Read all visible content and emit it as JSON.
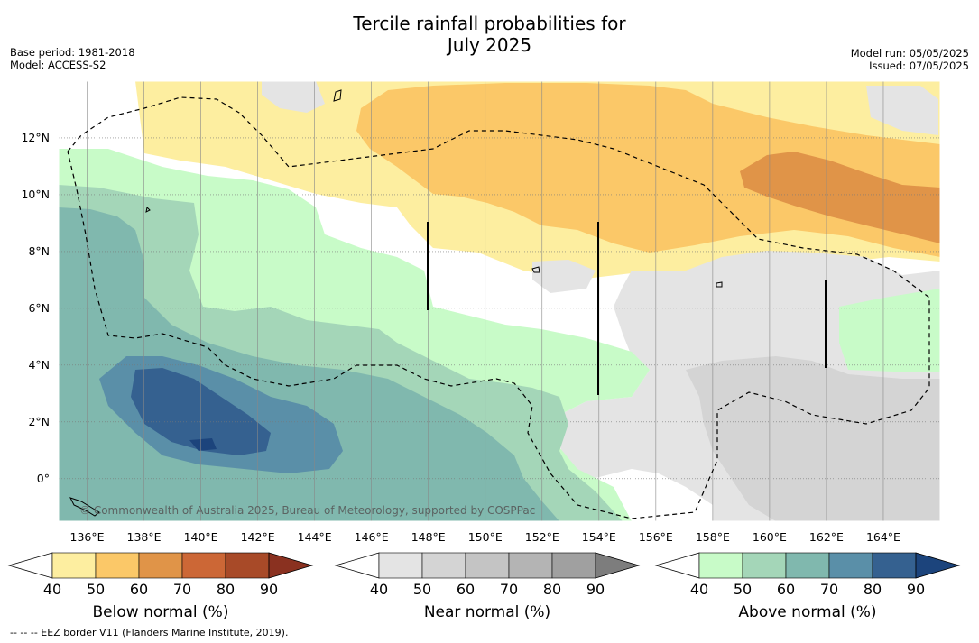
{
  "title_line1": "Tercile rainfall probabilities for",
  "title_line2": "July 2025",
  "base_period": "Base period: 1981-2018",
  "model": "Model: ACCESS-S2",
  "model_run": "Model run: 05/05/2025",
  "issued": "Issued: 07/05/2025",
  "copyright": "© Commonwealth of Australia 2025, Bureau of Meteorology, supported by COSPPac",
  "footnote": "-- -- -- EEZ border V11 (Flanders Marine Institute, 2019).",
  "x_ticks": [
    "136°E",
    "138°E",
    "140°E",
    "142°E",
    "144°E",
    "146°E",
    "148°E",
    "150°E",
    "152°E",
    "154°E",
    "156°E",
    "158°E",
    "160°E",
    "162°E",
    "164°E"
  ],
  "y_ticks": [
    "12°N",
    "10°N",
    "8°N",
    "6°N",
    "4°N",
    "2°N",
    "0°"
  ],
  "colorbars": [
    {
      "label": "Below normal (%)",
      "ticks": [
        "40",
        "50",
        "60",
        "70",
        "80",
        "90"
      ],
      "colors": [
        "#ffffff",
        "#fdeea0",
        "#fbc868",
        "#e09448",
        "#cc6736",
        "#a84a28",
        "#8a3120"
      ]
    },
    {
      "label": "Near normal (%)",
      "ticks": [
        "40",
        "50",
        "60",
        "70",
        "80",
        "90"
      ],
      "colors": [
        "#ffffff",
        "#e4e4e4",
        "#d4d4d4",
        "#c4c4c4",
        "#b4b4b4",
        "#a0a0a0",
        "#7d7d7d"
      ]
    },
    {
      "label": "Above normal (%)",
      "ticks": [
        "40",
        "50",
        "60",
        "70",
        "80",
        "90"
      ],
      "colors": [
        "#ffffff",
        "#c8fbc8",
        "#a4d6b8",
        "#80b8ae",
        "#5a8fa8",
        "#356190",
        "#1c447c"
      ]
    }
  ],
  "chart_data": {
    "type": "map",
    "map_extent": {
      "lon_min": 135,
      "lon_max": 166,
      "lat_min": -1.5,
      "lat_max": 14
    },
    "categories": [
      "Below normal",
      "Near normal",
      "Above normal"
    ],
    "thresholds_percent": [
      40,
      50,
      60,
      70,
      80,
      90
    ]
  }
}
